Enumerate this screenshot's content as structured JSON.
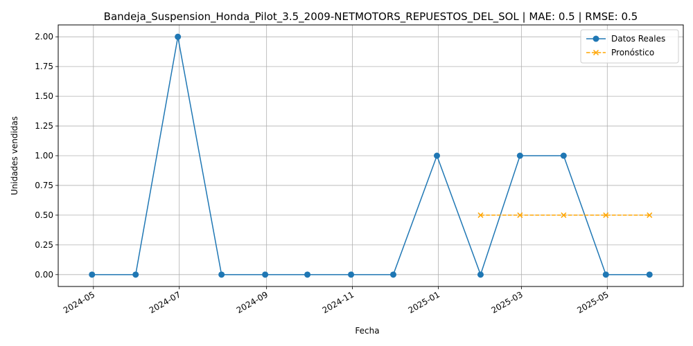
{
  "chart_data": {
    "type": "line",
    "title": "Bandeja_Suspension_Honda_Pilot_3.5_2009-NETMOTORS_REPUESTOS_DEL_SOL | MAE: 0.5 | RMSE: 0.5",
    "xlabel": "Fecha",
    "ylabel": "Unidades vendidas",
    "xlim": [
      "2024-04-06",
      "2025-06-24"
    ],
    "ylim": [
      -0.1,
      2.1
    ],
    "grid": true,
    "legend_position": "top-right",
    "x_ticks": [
      "2024-05",
      "2024-07",
      "2024-09",
      "2024-11",
      "2025-01",
      "2025-03",
      "2025-05"
    ],
    "y_ticks": [
      "0.00",
      "0.25",
      "0.50",
      "0.75",
      "1.00",
      "1.25",
      "1.50",
      "1.75",
      "2.00"
    ],
    "series": [
      {
        "name": "Datos Reales",
        "color": "#1f77b4",
        "marker": "circle",
        "line_style": "solid",
        "x": [
          "2024-04-30",
          "2024-05-31",
          "2024-06-30",
          "2024-07-31",
          "2024-08-31",
          "2024-09-30",
          "2024-10-31",
          "2024-11-30",
          "2024-12-31",
          "2025-01-31",
          "2025-02-28",
          "2025-03-31",
          "2025-04-30",
          "2025-05-31"
        ],
        "values": [
          0,
          0,
          2,
          0,
          0,
          0,
          0,
          0,
          1,
          0,
          1,
          1,
          0,
          0
        ]
      },
      {
        "name": "Pronóstico",
        "color": "#ffa500",
        "marker": "x",
        "line_style": "dashed",
        "x": [
          "2025-01-31",
          "2025-02-28",
          "2025-03-31",
          "2025-04-30",
          "2025-05-31"
        ],
        "values": [
          0.5,
          0.5,
          0.5,
          0.5,
          0.5
        ]
      }
    ]
  }
}
